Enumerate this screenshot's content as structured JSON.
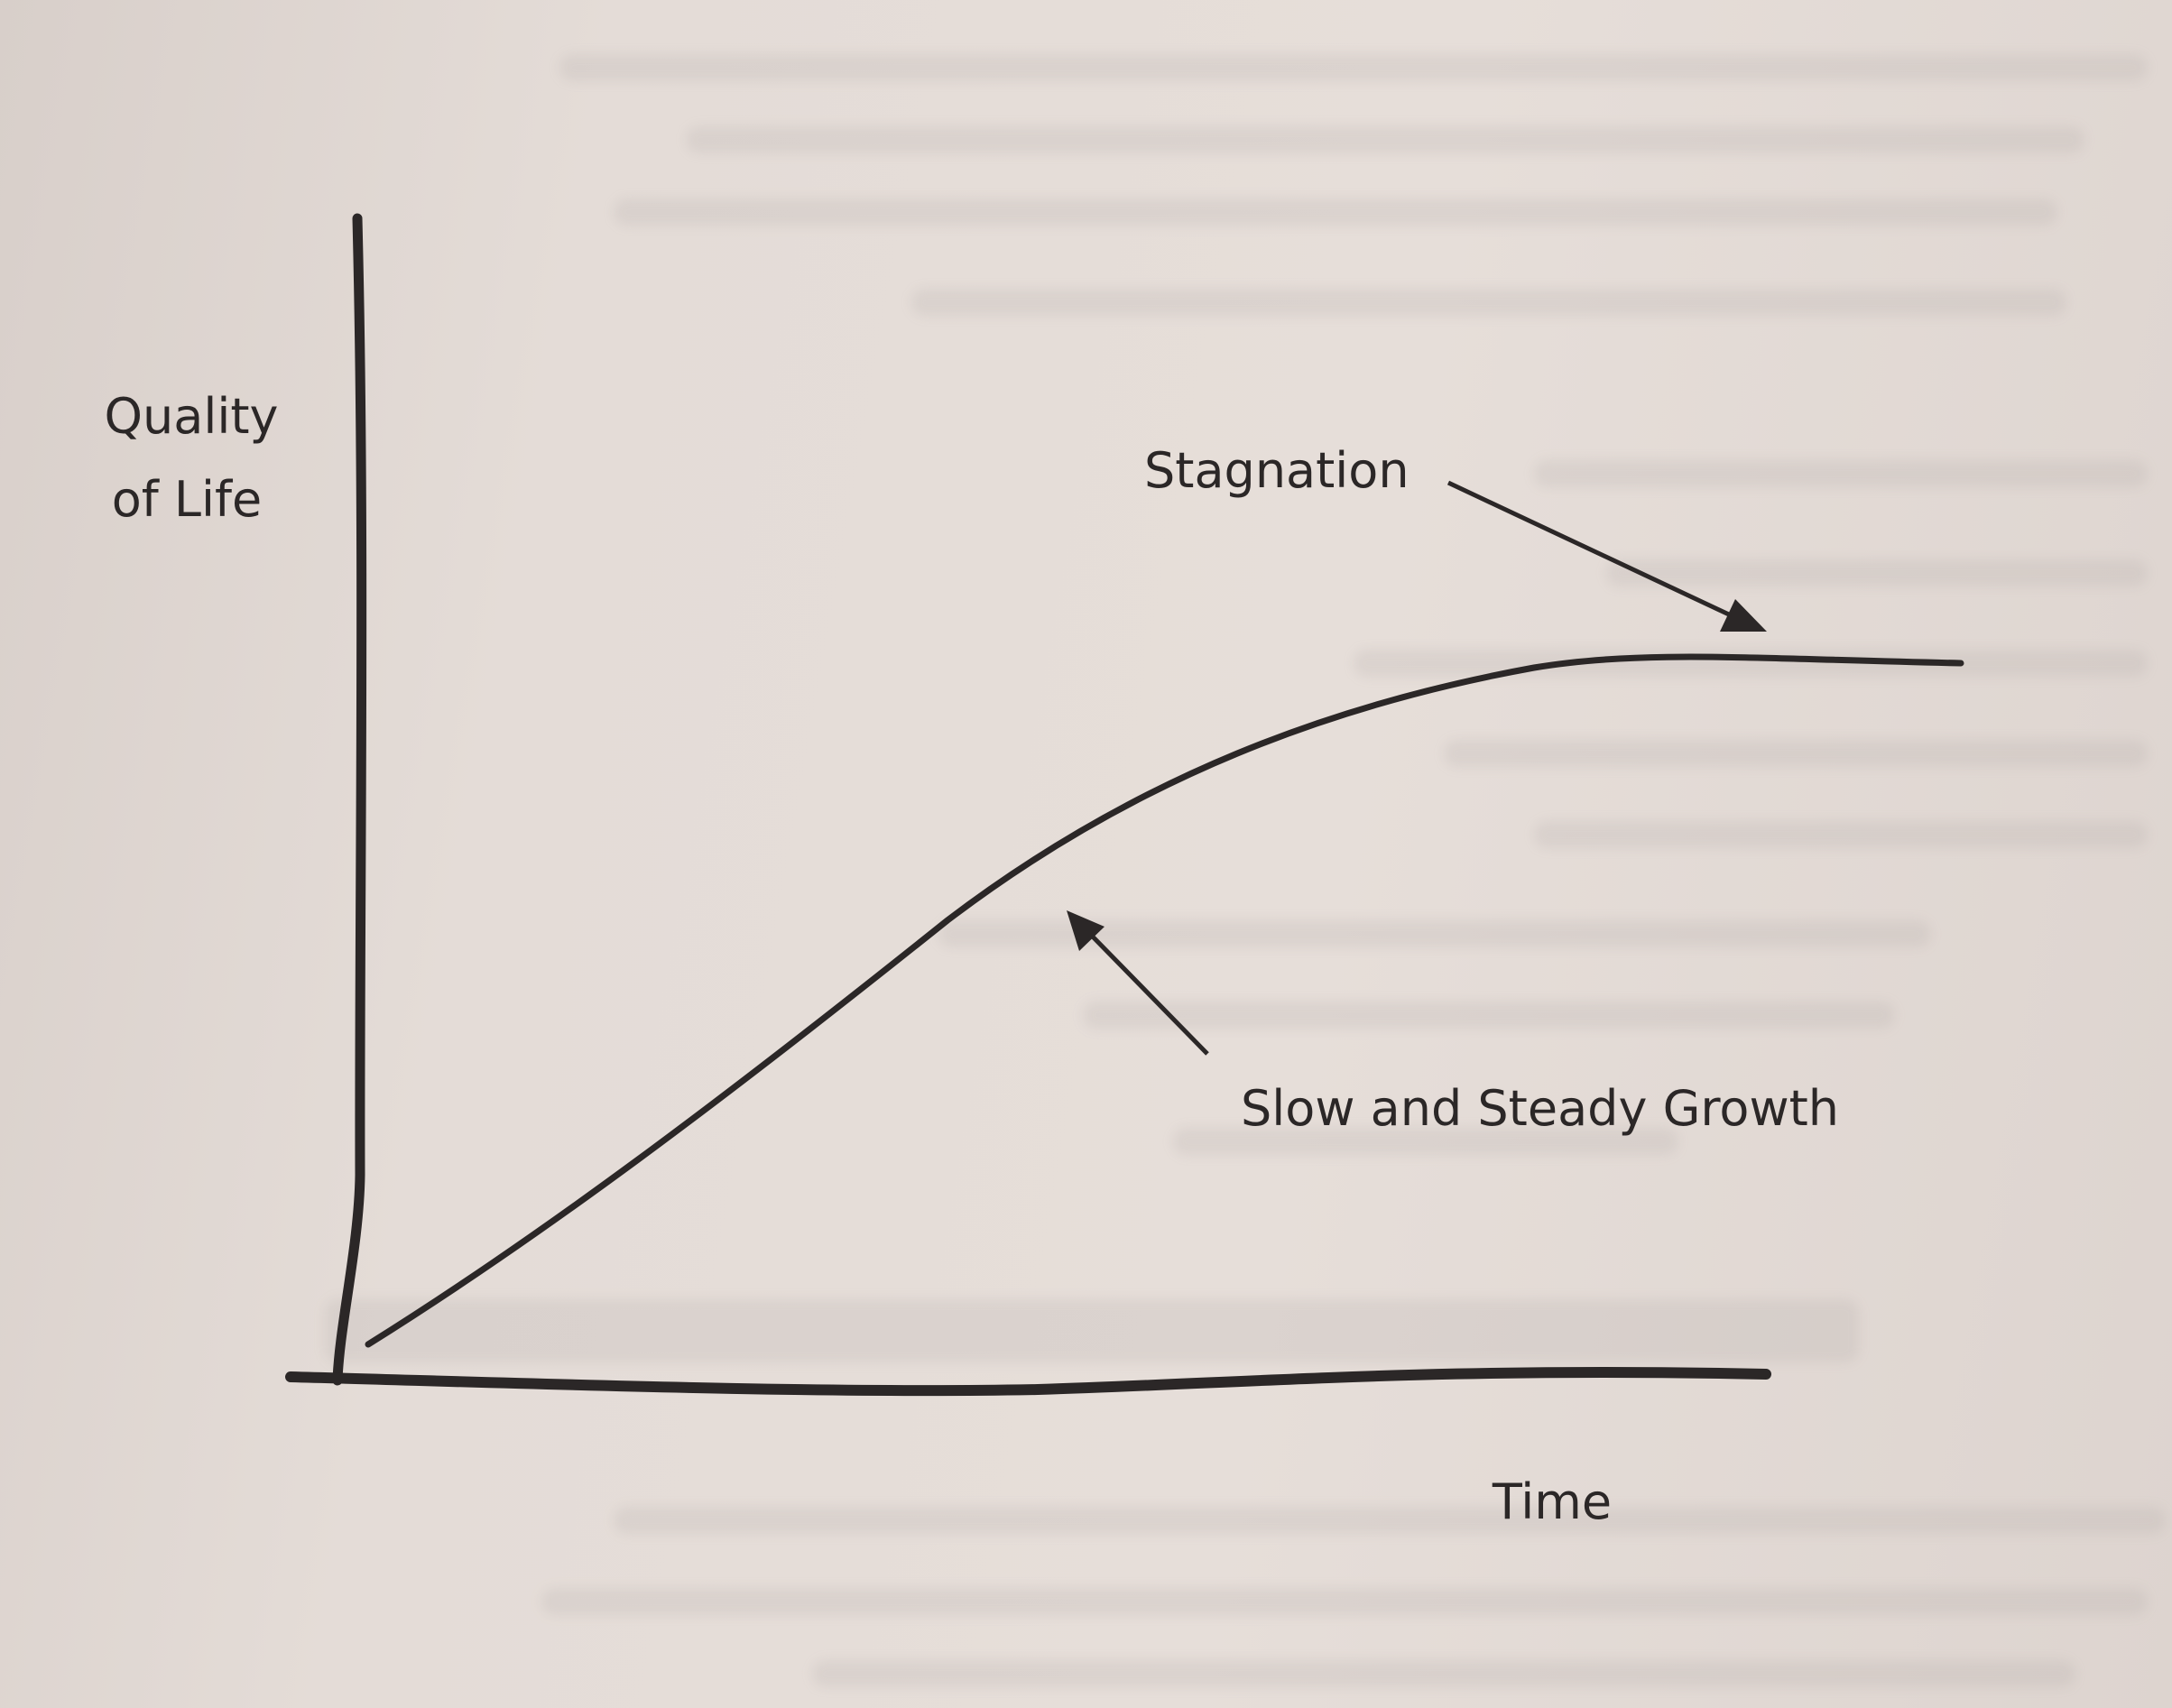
{
  "diagram": {
    "y_axis_label": [
      "Quality",
      "of Life"
    ],
    "x_axis_label": "Time",
    "annotations": {
      "stagnation": "Stagnation",
      "growth": "Slow and Steady Growth"
    },
    "colors": {
      "ink": "#2b2727",
      "paper": "#e2d9d4"
    }
  }
}
